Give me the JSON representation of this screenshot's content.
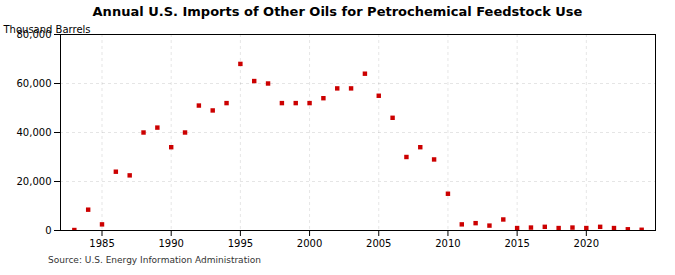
{
  "chart_data": {
    "type": "scatter",
    "title": "Annual U.S. Imports of Other Oils for Petrochemical Feedstock Use",
    "ylabel": "Thousand Barrels",
    "source": "Source: U.S. Energy Information Administration",
    "color": "#cc0000",
    "marker": "square",
    "grid": true,
    "xlim": [
      1982,
      2025
    ],
    "xticks": [
      1985,
      1990,
      1995,
      2000,
      2005,
      2010,
      2015,
      2020
    ],
    "ylim": [
      0,
      80000
    ],
    "yticks": [
      0,
      {
        "value": 20000,
        "label": "20,000"
      },
      {
        "value": 40000,
        "label": "40,000"
      },
      {
        "value": 60000,
        "label": "60,000"
      },
      {
        "value": 80000,
        "label": "80,000"
      }
    ],
    "x": [
      1983,
      1984,
      1985,
      1986,
      1987,
      1988,
      1989,
      1990,
      1991,
      1992,
      1993,
      1994,
      1995,
      1996,
      1997,
      1998,
      1999,
      2000,
      2001,
      2002,
      2003,
      2004,
      2005,
      2006,
      2007,
      2008,
      2009,
      2010,
      2011,
      2012,
      2013,
      2014,
      2015,
      2016,
      2017,
      2018,
      2019,
      2020,
      2021,
      2022,
      2023,
      2024
    ],
    "values": [
      200,
      8500,
      2500,
      24000,
      22500,
      40000,
      42000,
      34000,
      40000,
      51000,
      49000,
      52000,
      68000,
      61000,
      60000,
      52000,
      52000,
      52000,
      54000,
      58000,
      58000,
      64000,
      55000,
      46000,
      30000,
      34000,
      29000,
      15000,
      2500,
      3000,
      2000,
      4500,
      1000,
      1200,
      1500,
      1000,
      1200,
      1000,
      1500,
      1000,
      500,
      300
    ]
  }
}
